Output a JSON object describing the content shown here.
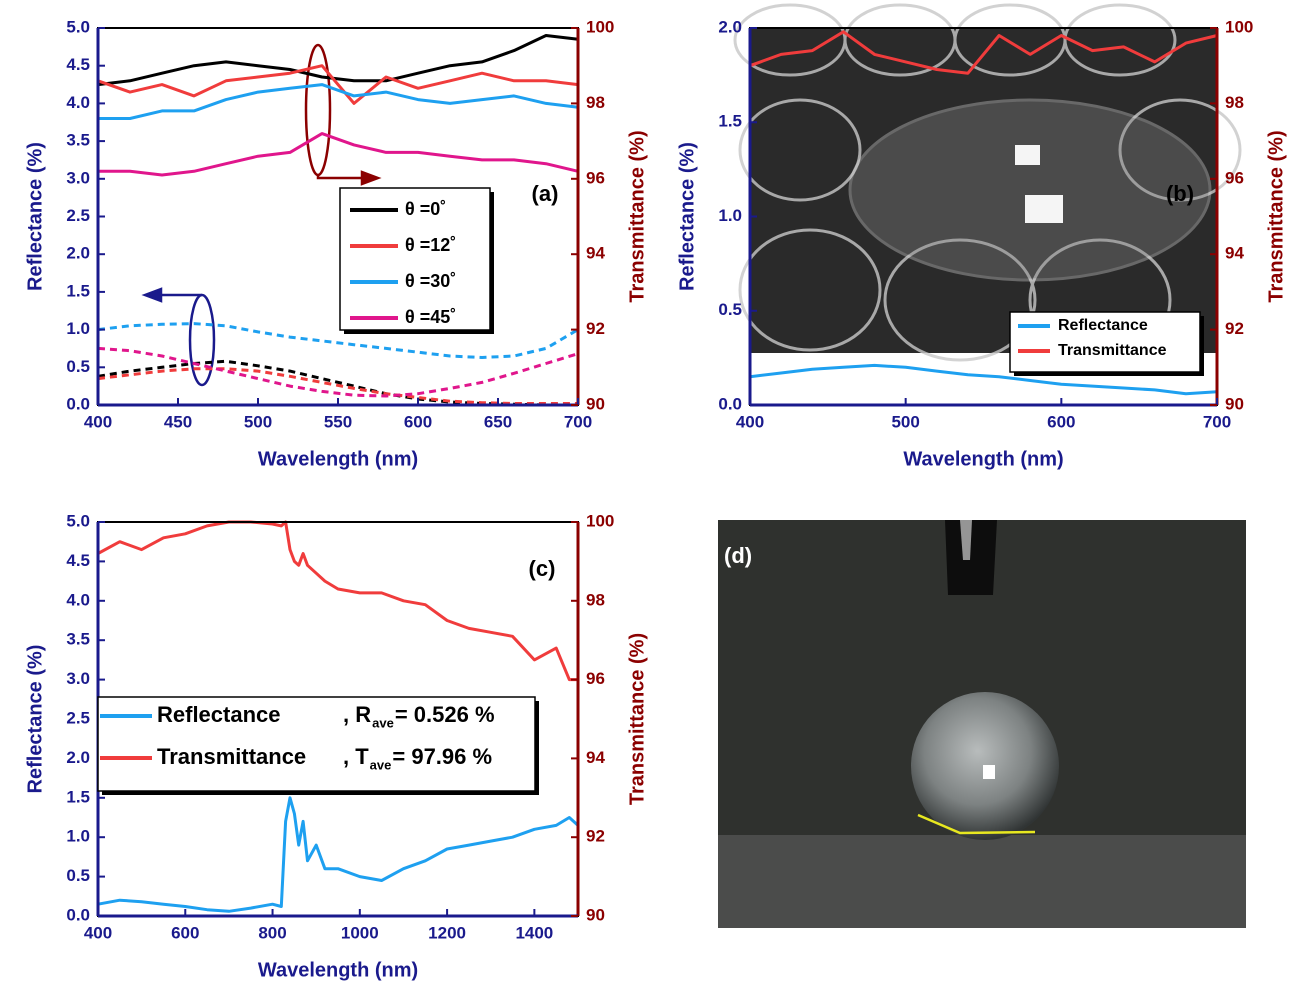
{
  "chart_data": [
    {
      "type": "line",
      "annotation": "(a)",
      "xlabel": "Wavelength (nm)",
      "ylabel": "Reflectance (%)",
      "y2label": "Transmittance (%)",
      "x": [
        400,
        420,
        440,
        460,
        480,
        500,
        520,
        540,
        560,
        580,
        600,
        620,
        640,
        660,
        680,
        700
      ],
      "xlim": [
        400,
        700
      ],
      "xticks": [
        400,
        450,
        500,
        550,
        600,
        650,
        700
      ],
      "ylim": [
        0,
        5
      ],
      "yticks": [
        {
          "value": 0,
          "label": "0.0"
        },
        0.5,
        {
          "value": 1,
          "label": "1.0"
        },
        1.5,
        {
          "value": 2,
          "label": "2.0"
        },
        2.5,
        {
          "value": 3,
          "label": "3.0"
        },
        3.5,
        {
          "value": 4,
          "label": "4.0"
        },
        4.5,
        {
          "value": 5,
          "label": "5.0"
        }
      ],
      "y2lim": [
        90,
        100
      ],
      "y2ticks": [
        90,
        92,
        94,
        96,
        98,
        100
      ],
      "series": [
        {
          "name": "θ =0˚",
          "color": "#000000",
          "axis": "y2",
          "values": [
            98.5,
            98.6,
            98.8,
            99.0,
            99.1,
            99.0,
            98.9,
            98.7,
            98.6,
            98.6,
            98.8,
            99.0,
            99.1,
            99.4,
            99.8,
            99.7
          ]
        },
        {
          "name": "θ =12˚",
          "color": "#f03c3c",
          "axis": "y2",
          "values": [
            98.6,
            98.3,
            98.5,
            98.2,
            98.6,
            98.7,
            98.8,
            99.0,
            98.0,
            98.7,
            98.4,
            98.6,
            98.8,
            98.6,
            98.6,
            98.5
          ]
        },
        {
          "name": "θ =30˚",
          "color": "#1ea0f0",
          "axis": "y2",
          "values": [
            97.6,
            97.6,
            97.8,
            97.8,
            98.1,
            98.3,
            98.4,
            98.5,
            98.2,
            98.3,
            98.1,
            98.0,
            98.1,
            98.2,
            98.0,
            97.9
          ]
        },
        {
          "name": "θ =45˚",
          "color": "#e0168c",
          "axis": "y2",
          "values": [
            96.2,
            96.2,
            96.1,
            96.2,
            96.4,
            96.6,
            96.7,
            97.2,
            96.9,
            96.7,
            96.7,
            96.6,
            96.5,
            96.5,
            96.4,
            96.2
          ]
        },
        {
          "color": "#000000",
          "dash": true,
          "values": [
            0.38,
            0.45,
            0.5,
            0.55,
            0.58,
            0.52,
            0.45,
            0.35,
            0.25,
            0.15,
            0.08,
            0.04,
            0.02,
            0.01,
            0.0,
            0.0
          ]
        },
        {
          "color": "#f03c3c",
          "dash": true,
          "values": [
            0.35,
            0.4,
            0.45,
            0.48,
            0.48,
            0.45,
            0.38,
            0.3,
            0.22,
            0.15,
            0.1,
            0.05,
            0.03,
            0.02,
            0.02,
            0.02
          ]
        },
        {
          "color": "#1ea0f0",
          "dash": true,
          "values": [
            1.0,
            1.05,
            1.07,
            1.08,
            1.05,
            0.97,
            0.9,
            0.85,
            0.8,
            0.75,
            0.7,
            0.65,
            0.63,
            0.65,
            0.75,
            1.0
          ]
        },
        {
          "color": "#e0168c",
          "dash": true,
          "values": [
            0.75,
            0.72,
            0.65,
            0.55,
            0.45,
            0.35,
            0.25,
            0.18,
            0.13,
            0.12,
            0.15,
            0.22,
            0.3,
            0.42,
            0.55,
            0.68
          ]
        }
      ]
    },
    {
      "type": "line",
      "annotation": "(b)",
      "xlabel": "Wavelength (nm)",
      "ylabel": "Reflectance (%)",
      "y2label": "Transmittance (%)",
      "x": [
        400,
        420,
        440,
        460,
        480,
        500,
        520,
        540,
        560,
        580,
        600,
        620,
        640,
        660,
        680,
        700
      ],
      "xlim": [
        400,
        700
      ],
      "xticks": [
        400,
        500,
        600,
        700
      ],
      "ylim": [
        0,
        2
      ],
      "yticks": [
        {
          "value": 0,
          "label": "0.0"
        },
        0.5,
        {
          "value": 1,
          "label": "1.0"
        },
        1.5,
        {
          "value": 2,
          "label": "2.0"
        }
      ],
      "y2lim": [
        90,
        100
      ],
      "y2ticks": [
        90,
        92,
        94,
        96,
        98,
        100
      ],
      "series": [
        {
          "name": "Reflectance",
          "color": "#1ea0f0",
          "values": [
            0.15,
            0.17,
            0.19,
            0.2,
            0.21,
            0.2,
            0.18,
            0.16,
            0.15,
            0.13,
            0.11,
            0.1,
            0.09,
            0.08,
            0.06,
            0.07
          ]
        },
        {
          "name": "Transmittance",
          "color": "#f03c3c",
          "axis": "y2",
          "values": [
            99.0,
            99.3,
            99.4,
            99.9,
            99.3,
            99.1,
            98.9,
            98.8,
            99.8,
            99.3,
            99.8,
            99.4,
            99.5,
            99.1,
            99.6,
            99.8
          ]
        }
      ]
    },
    {
      "type": "line",
      "annotation": "(c)",
      "xlabel": "Wavelength (nm)",
      "ylabel": "Reflectance (%)",
      "y2label": "Transmittance (%)",
      "x": [
        400,
        450,
        500,
        550,
        600,
        650,
        700,
        750,
        800,
        820,
        830,
        840,
        850,
        860,
        870,
        880,
        900,
        920,
        950,
        1000,
        1050,
        1100,
        1150,
        1200,
        1250,
        1300,
        1350,
        1400,
        1450,
        1480,
        1500
      ],
      "xlim": [
        400,
        1500
      ],
      "xticks": [
        400,
        600,
        800,
        1000,
        1200,
        1400
      ],
      "ylim": [
        0,
        5
      ],
      "yticks": [
        {
          "value": 0,
          "label": "0.0"
        },
        0.5,
        {
          "value": 1,
          "label": "1.0"
        },
        1.5,
        {
          "value": 2,
          "label": "2.0"
        },
        2.5,
        {
          "value": 3,
          "label": "3.0"
        },
        3.5,
        {
          "value": 4,
          "label": "4.0"
        },
        4.5,
        {
          "value": 5,
          "label": "5.0"
        }
      ],
      "y2lim": [
        90,
        100
      ],
      "y2ticks": [
        90,
        92,
        94,
        96,
        98,
        100
      ],
      "series": [
        {
          "name": "Reflectance",
          "stat_symbol": ", R",
          "stat_subscript": "ave",
          "stat_text": "= 0.526 %",
          "color": "#1ea0f0",
          "values": [
            0.15,
            0.2,
            0.18,
            0.15,
            0.12,
            0.08,
            0.06,
            0.1,
            0.15,
            0.12,
            1.2,
            1.5,
            1.3,
            0.9,
            1.2,
            0.7,
            0.9,
            0.6,
            0.6,
            0.5,
            0.45,
            0.6,
            0.7,
            0.85,
            0.9,
            0.95,
            1.0,
            1.1,
            1.15,
            1.25,
            1.15
          ]
        },
        {
          "name": "Transmittance",
          "stat_symbol": ", T",
          "stat_subscript": "ave",
          "stat_text": "= 97.96 %",
          "color": "#f03c3c",
          "axis": "y2",
          "values": [
            99.2,
            99.5,
            99.3,
            99.6,
            99.7,
            99.9,
            100,
            100,
            99.95,
            99.9,
            100,
            99.3,
            99.0,
            98.9,
            99.2,
            98.9,
            98.7,
            98.5,
            98.3,
            98.2,
            98.2,
            98.0,
            97.9,
            97.5,
            97.3,
            97.2,
            97.1,
            96.5,
            96.8,
            96.0,
            96.0
          ]
        }
      ]
    }
  ],
  "photo": {
    "label": "(d)"
  }
}
